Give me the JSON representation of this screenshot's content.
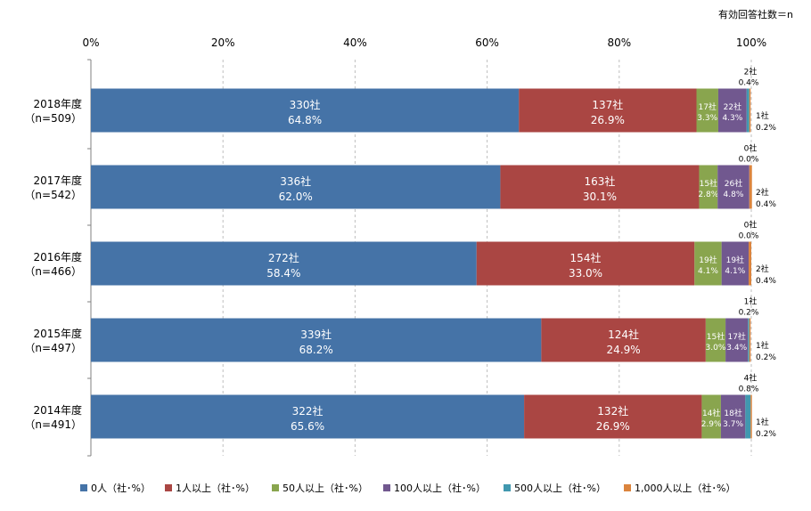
{
  "chart_data": {
    "type": "bar",
    "orientation": "horizontal",
    "stacked": true,
    "note": "有効回答社数＝n",
    "x_tick_labels": [
      "0%",
      "20%",
      "40%",
      "60%",
      "80%",
      "100%"
    ],
    "xlim": [
      0,
      100
    ],
    "categories": [
      {
        "year": "2018年度",
        "n": "（n=509）"
      },
      {
        "year": "2017年度",
        "n": "（n=542）"
      },
      {
        "year": "2016年度",
        "n": "（n=466）"
      },
      {
        "year": "2015年度",
        "n": "（n=497）"
      },
      {
        "year": "2014年度",
        "n": "（n=491）"
      }
    ],
    "series": [
      {
        "name": "0人（社･%）",
        "color": "#4573a7",
        "values": [
          64.8,
          62.0,
          58.4,
          68.2,
          65.6
        ],
        "counts": [
          "330社",
          "336社",
          "272社",
          "339社",
          "322社"
        ],
        "percents": [
          "64.8%",
          "62.0%",
          "58.4%",
          "68.2%",
          "65.6%"
        ]
      },
      {
        "name": "1人以上（社･%）",
        "color": "#aa4643",
        "values": [
          26.9,
          30.1,
          33.0,
          24.9,
          26.9
        ],
        "counts": [
          "137社",
          "163社",
          "154社",
          "124社",
          "132社"
        ],
        "percents": [
          "26.9%",
          "30.1%",
          "33.0%",
          "24.9%",
          "26.9%"
        ]
      },
      {
        "name": "50人以上（社･%）",
        "color": "#89a54e",
        "values": [
          3.3,
          2.8,
          4.1,
          3.0,
          2.9
        ],
        "counts": [
          "17社",
          "15社",
          "19社",
          "15社",
          "14社"
        ],
        "percents": [
          "3.3%",
          "2.8%",
          "4.1%",
          "3.0%",
          "2.9%"
        ]
      },
      {
        "name": "100人以上（社･%）",
        "color": "#71588f",
        "values": [
          4.3,
          4.8,
          4.1,
          3.4,
          3.7
        ],
        "counts": [
          "22社",
          "26社",
          "19社",
          "17社",
          "18社"
        ],
        "percents": [
          "4.3%",
          "4.8%",
          "4.1%",
          "3.4%",
          "3.7%"
        ]
      },
      {
        "name": "500人以上（社･%）",
        "color": "#4198af",
        "values": [
          0.4,
          0.0,
          0.0,
          0.2,
          0.8
        ],
        "counts": [
          "2社",
          "0社",
          "0社",
          "1社",
          "4社"
        ],
        "percents": [
          "0.4%",
          "0.0%",
          "0.0%",
          "0.2%",
          "0.8%"
        ]
      },
      {
        "name": "1,000人以上（社･%）",
        "color": "#db843d",
        "values": [
          0.2,
          0.4,
          0.4,
          0.2,
          0.2
        ],
        "counts": [
          "1社",
          "2社",
          "2社",
          "1社",
          "1社"
        ],
        "percents": [
          "0.2%",
          "0.4%",
          "0.4%",
          "0.2%",
          "0.2%"
        ]
      }
    ]
  }
}
